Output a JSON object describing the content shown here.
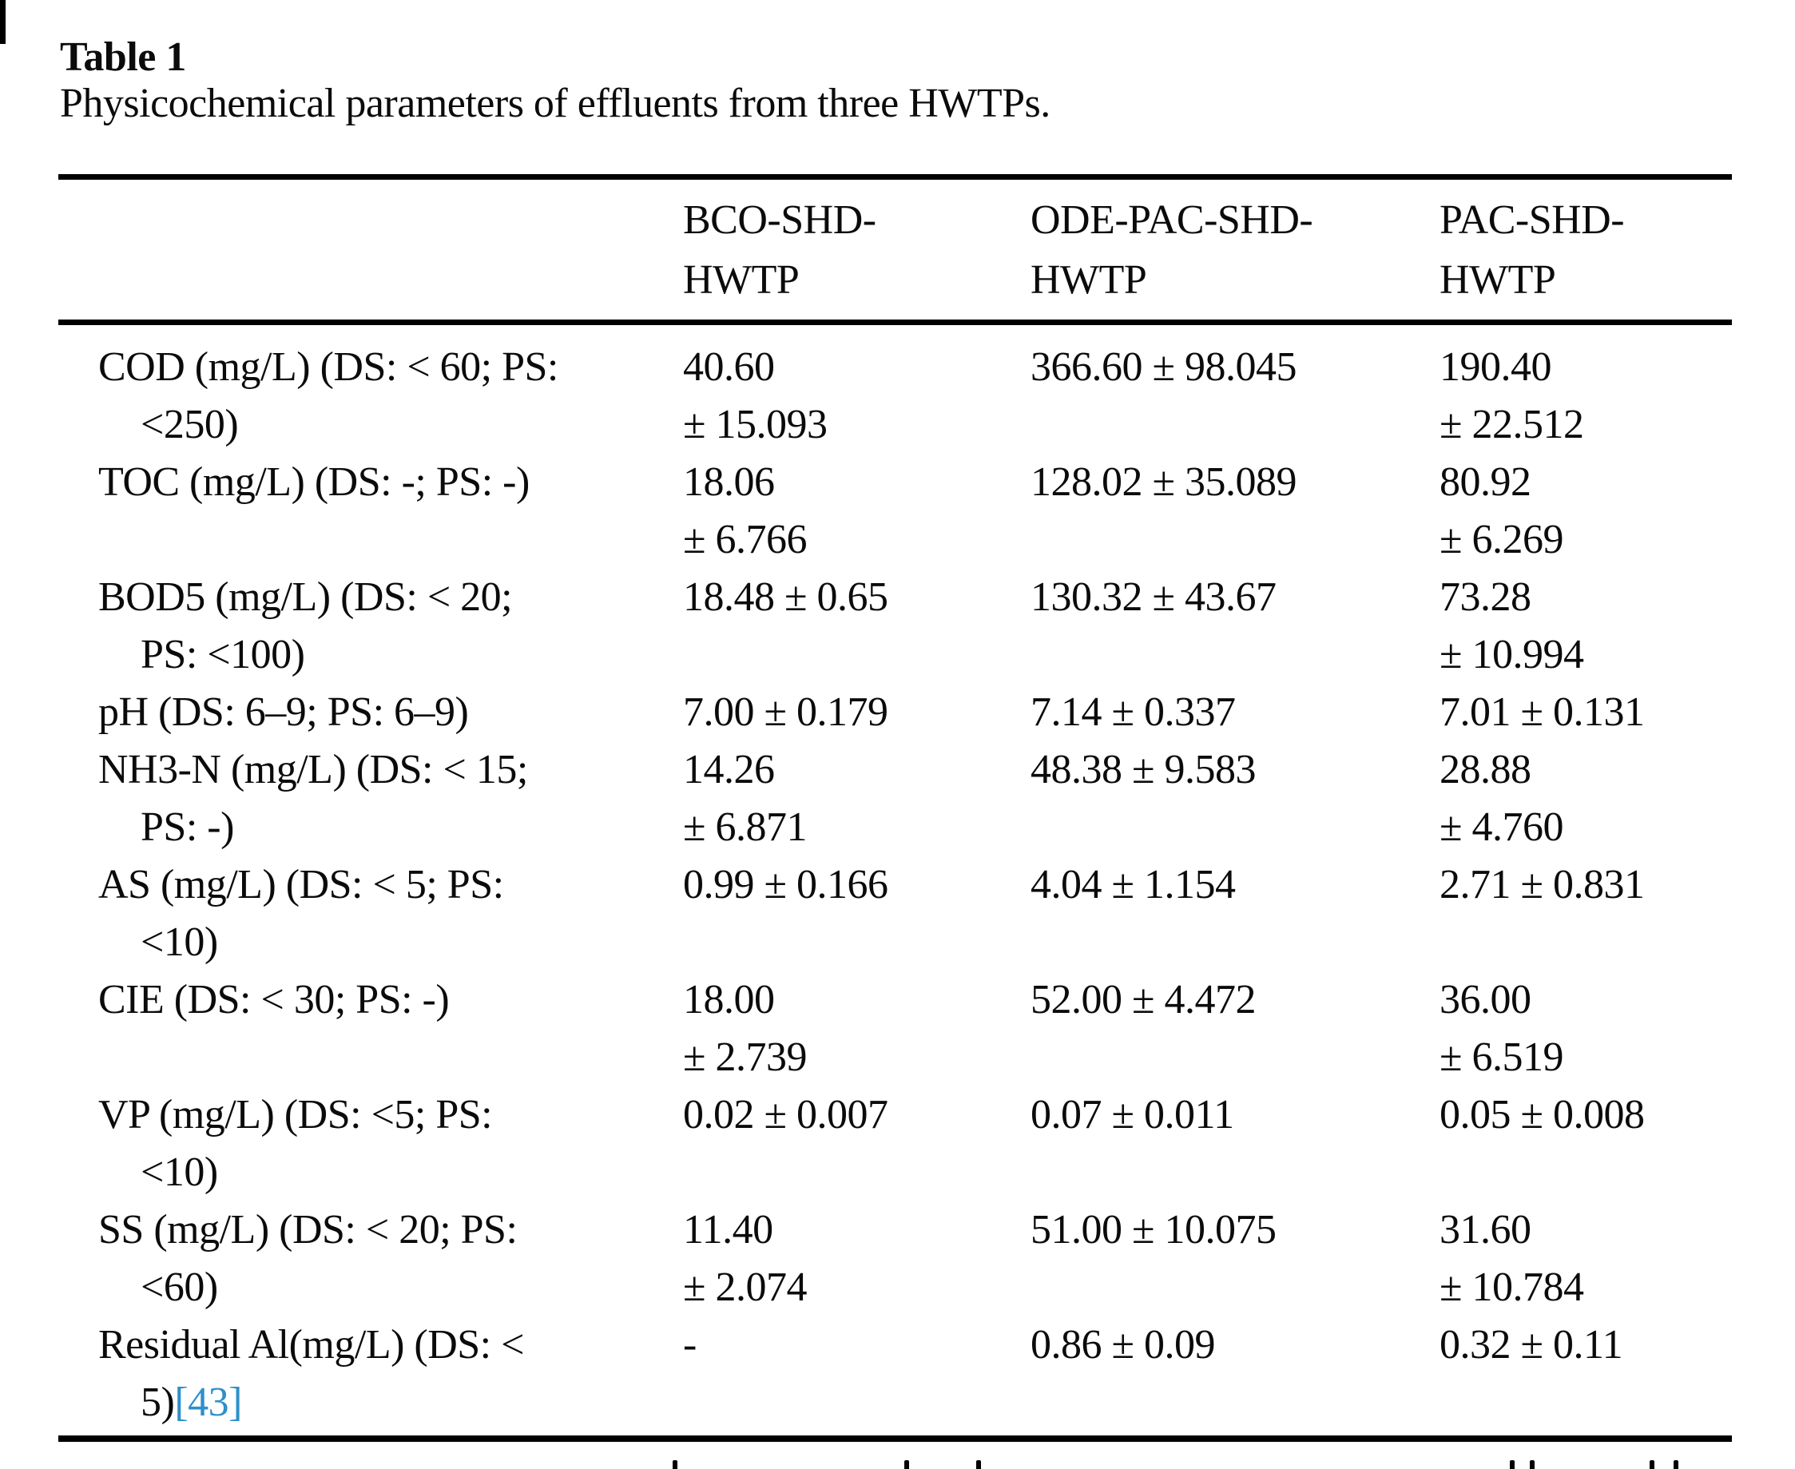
{
  "page": {
    "table_label": "Table 1",
    "caption": "Physicochemical parameters of effluents from three HWTPs.",
    "citation_link_color": "#2e8fca"
  },
  "table": {
    "column_headers": [
      {
        "lines": [
          "BCO-SHD-",
          "HWTP"
        ]
      },
      {
        "lines": [
          "ODE-PAC-SHD-",
          "HWTP"
        ]
      },
      {
        "lines": [
          "PAC-SHD-",
          "HWTP"
        ]
      }
    ],
    "rows": [
      {
        "parameter_lines": [
          "COD (mg/L) (DS: < 60; PS:",
          "<250)"
        ],
        "values": [
          [
            "40.60",
            "± 15.093"
          ],
          [
            "366.60 ± 98.045"
          ],
          [
            "190.40",
            "± 22.512"
          ]
        ]
      },
      {
        "parameter_lines": [
          "TOC (mg/L) (DS: -; PS: -)"
        ],
        "values": [
          [
            "18.06",
            "± 6.766"
          ],
          [
            "128.02 ± 35.089"
          ],
          [
            "80.92",
            "± 6.269"
          ]
        ]
      },
      {
        "parameter_lines": [
          "BOD5 (mg/L) (DS: < 20;",
          "PS: <100)"
        ],
        "values": [
          [
            "18.48 ± 0.65"
          ],
          [
            "130.32 ± 43.67"
          ],
          [
            "73.28",
            "± 10.994"
          ]
        ]
      },
      {
        "parameter_lines": [
          "pH (DS: 6–9; PS: 6–9)"
        ],
        "values": [
          [
            "7.00 ± 0.179"
          ],
          [
            "7.14 ± 0.337"
          ],
          [
            "7.01 ± 0.131"
          ]
        ]
      },
      {
        "parameter_lines": [
          "NH3-N (mg/L) (DS: < 15;",
          "PS: -)"
        ],
        "values": [
          [
            "14.26",
            "± 6.871"
          ],
          [
            "48.38 ± 9.583"
          ],
          [
            "28.88",
            "± 4.760"
          ]
        ]
      },
      {
        "parameter_lines": [
          "AS (mg/L) (DS: < 5; PS:",
          "<10)"
        ],
        "values": [
          [
            "0.99 ± 0.166"
          ],
          [
            "4.04 ± 1.154"
          ],
          [
            "2.71 ± 0.831"
          ]
        ]
      },
      {
        "parameter_lines": [
          "CIE (DS: < 30; PS: -)"
        ],
        "values": [
          [
            "18.00",
            "± 2.739"
          ],
          [
            "52.00 ± 4.472"
          ],
          [
            "36.00",
            "± 6.519"
          ]
        ]
      },
      {
        "parameter_lines": [
          "VP (mg/L) (DS: <5; PS:",
          "<10)"
        ],
        "values": [
          [
            "0.02 ± 0.007"
          ],
          [
            "0.07 ± 0.011"
          ],
          [
            "0.05 ± 0.008"
          ]
        ]
      },
      {
        "parameter_lines": [
          "SS (mg/L) (DS: < 20; PS:",
          "<60)"
        ],
        "values": [
          [
            "11.40",
            "± 2.074"
          ],
          [
            "51.00 ± 10.075"
          ],
          [
            "31.60",
            "± 10.784"
          ]
        ]
      },
      {
        "parameter_lines": [
          "Residual Al(mg/L) (DS: <",
          "5)"
        ],
        "citation": "[43]",
        "values": [
          [
            "-"
          ],
          [
            "0.86 ± 0.09"
          ],
          [
            "0.32 ± 0.11"
          ]
        ]
      }
    ]
  }
}
